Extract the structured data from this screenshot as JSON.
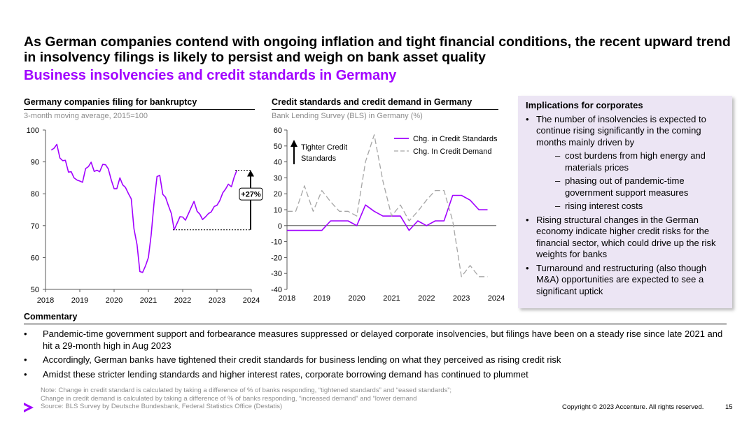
{
  "headline": "As German companies contend with ongoing inflation and tight financial conditions, the recent upward trend in insolvency filings is likely to persist and weigh on bank asset quality",
  "subheadline": "Business insolvencies and credit standards in Germany",
  "accent_color": "#a100ff",
  "chart_data": [
    {
      "type": "line",
      "title": "Germany companies filing for bankruptcy",
      "subtitle": "3-month moving average, 2015=100",
      "x_ticks": [
        "2018",
        "2019",
        "2020",
        "2021",
        "2022",
        "2023",
        "2024"
      ],
      "y_ticks": [
        "50",
        "60",
        "70",
        "80",
        "90",
        "100"
      ],
      "ylim": [
        50,
        100
      ],
      "xlim": [
        2018.0,
        2024.0
      ],
      "grid": false,
      "series": [
        {
          "color": "#a100ff",
          "x": [
            2018.17,
            2018.25,
            2018.33,
            2018.42,
            2018.5,
            2018.58,
            2018.67,
            2018.75,
            2018.83,
            2018.92,
            2019.0,
            2019.08,
            2019.17,
            2019.25,
            2019.33,
            2019.42,
            2019.5,
            2019.58,
            2019.67,
            2019.75,
            2019.83,
            2019.92,
            2020.0,
            2020.08,
            2020.17,
            2020.25,
            2020.33,
            2020.42,
            2020.5,
            2020.58,
            2020.67,
            2020.75,
            2020.83,
            2020.92,
            2021.0,
            2021.08,
            2021.17,
            2021.25,
            2021.33,
            2021.42,
            2021.5,
            2021.58,
            2021.67,
            2021.75,
            2021.83,
            2021.92,
            2022.0,
            2022.08,
            2022.17,
            2022.25,
            2022.33,
            2022.42,
            2022.5,
            2022.58,
            2022.67,
            2022.75,
            2022.83,
            2022.92,
            2023.0,
            2023.08,
            2023.17,
            2023.25,
            2023.33,
            2023.42,
            2023.5,
            2023.58
          ],
          "values": [
            93.7,
            94.3,
            95.5,
            91.2,
            90.4,
            90.5,
            86.8,
            86.9,
            85.0,
            84.3,
            84.0,
            83.6,
            87.9,
            88.5,
            89.9,
            87.0,
            87.4,
            86.9,
            89.2,
            89.1,
            87.8,
            84.2,
            81.6,
            81.6,
            85.0,
            82.8,
            82.0,
            80.0,
            78.4,
            69.0,
            64.0,
            55.6,
            55.3,
            57.5,
            60.0,
            67.0,
            77.7,
            85.4,
            85.8,
            79.8,
            78.9,
            76.4,
            73.8,
            68.7,
            70.6,
            72.8,
            72.7,
            71.7,
            73.8,
            75.8,
            77.6,
            74.5,
            73.6,
            71.9,
            72.8,
            73.8,
            74.3,
            76.0,
            76.4,
            77.8,
            80.3,
            81.5,
            83.0,
            82.2,
            85.2,
            87.4
          ]
        }
      ],
      "annotation": {
        "label": "+27%",
        "from_value": 68.7,
        "to_value": 87.4
      }
    },
    {
      "type": "line",
      "title": "Credit standards and credit demand in Germany",
      "subtitle": "Bank Lending Survey (BLS) in Germany (%)",
      "x_ticks": [
        "2018",
        "2019",
        "2020",
        "2021",
        "2022",
        "2023",
        "2024"
      ],
      "y_ticks": [
        "60",
        "50",
        "40",
        "30",
        "20",
        "10",
        "0",
        "-10",
        "-20",
        "-30",
        "-40"
      ],
      "ylim": [
        -40,
        60
      ],
      "xlim": [
        2018.0,
        2024.0
      ],
      "grid": false,
      "legend": "top-right",
      "annotation_text": [
        "Tighter Credit",
        "Standards"
      ],
      "series": [
        {
          "name": "Chg. in Credit Standards",
          "style": "solid",
          "color": "#a100ff",
          "x": [
            2018.0,
            2018.25,
            2018.5,
            2018.75,
            2019.0,
            2019.25,
            2019.5,
            2019.75,
            2020.0,
            2020.25,
            2020.5,
            2020.75,
            2021.0,
            2021.25,
            2021.5,
            2021.75,
            2022.0,
            2022.25,
            2022.5,
            2022.75,
            2023.0,
            2023.25,
            2023.5,
            2023.75
          ],
          "values": [
            -3,
            -3,
            -3,
            -3,
            -3,
            3,
            3,
            3,
            0,
            13,
            9,
            6,
            6,
            6,
            -3,
            3,
            0,
            3,
            3,
            19,
            19,
            16,
            10,
            10
          ]
        },
        {
          "name": "Chg. In Credit Demand",
          "style": "dashed",
          "color": "#a6a6a6",
          "x": [
            2018.0,
            2018.25,
            2018.5,
            2018.75,
            2019.0,
            2019.25,
            2019.5,
            2019.75,
            2020.0,
            2020.25,
            2020.5,
            2020.75,
            2021.0,
            2021.25,
            2021.5,
            2021.75,
            2022.0,
            2022.25,
            2022.5,
            2022.75,
            2023.0,
            2023.25,
            2023.5,
            2023.75
          ],
          "values": [
            9,
            9,
            25,
            9,
            22,
            15,
            9,
            9,
            6,
            40,
            57,
            28,
            6,
            13,
            3,
            9,
            16,
            22,
            22,
            3,
            -32,
            -25,
            -32,
            -32
          ]
        }
      ]
    }
  ],
  "implications": {
    "title": "Implications for corporates",
    "bullets": [
      "The number of insolvencies is expected to continue rising significantly in the coming months mainly driven by",
      "Rising structural changes in the German economy indicate higher credit risks for the financial sector, which could drive up the risk weights for banks",
      "Turnaround and restructuring (also though M&A) opportunities are expected to see a significant uptick"
    ],
    "sub_bullets": [
      "cost burdens from high energy and materials prices",
      "phasing out of pandemic-time government support measures",
      "rising interest costs"
    ]
  },
  "commentary": {
    "title": "Commentary",
    "bullets": [
      "Pandemic-time government support and forbearance measures suppressed or delayed corporate insolvencies, but filings have been on a steady rise since late 2021 and hit a 29-month high in Aug 2023",
      "Accordingly, German banks have tightened their credit standards for business lending on what they perceived as rising credit risk",
      "Amidst these stricter lending standards and higher interest rates, corporate borrowing demand has continued to plummet"
    ]
  },
  "notes": [
    "Note: Change in credit standard is calculated by taking a difference of % of banks responding, “tightened standards” and “eased standards”;",
    "Change in credit demand is calculated by taking a difference of % of banks responding, “increased demand” and “lower demand",
    "Source: BLS Survey by Deutsche Bundesbank, Federal Statistics Office (Destatis)"
  ],
  "footer": {
    "copyright": "Copyright © 2023 Accenture. All rights reserved.",
    "page_number": "15",
    "logo_icon": "accenture-chevron-icon"
  }
}
